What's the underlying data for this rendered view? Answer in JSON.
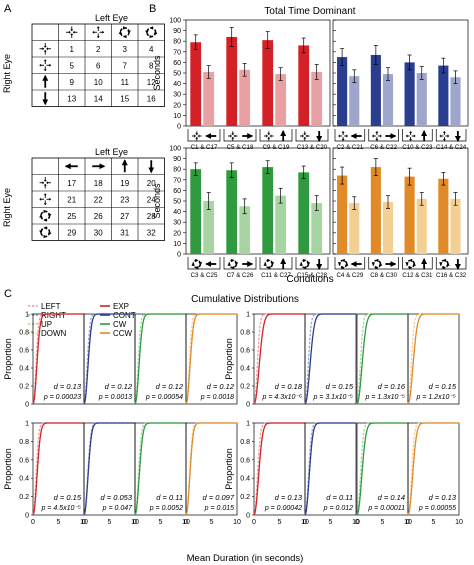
{
  "panel_labels": {
    "a": "A",
    "b": "B",
    "c": "C"
  },
  "panel_a": {
    "table1": {
      "title": "Left Eye",
      "side_label": "Right Eye",
      "col_icons": [
        "cross-in-arrows-icon",
        "cross-out-arrows-icon",
        "circle-arrows-cw-icon",
        "circle-arrows-ccw-icon"
      ],
      "row_icons": [
        "cross-in-arrows-icon",
        "cross-out-arrows-icon",
        "arrow-up-icon",
        "arrow-down-icon"
      ],
      "cells": [
        [
          "1",
          "2",
          "3",
          "4"
        ],
        [
          "5",
          "6",
          "7",
          "8"
        ],
        [
          "9",
          "10",
          "11",
          "12"
        ],
        [
          "13",
          "14",
          "15",
          "16"
        ]
      ]
    },
    "table2": {
      "title": "Left Eye",
      "side_label": "Right Eye",
      "col_icons": [
        "arrow-left-icon",
        "arrow-right-icon",
        "arrow-up-icon",
        "arrow-down-icon"
      ],
      "row_icons": [
        "cross-in-arrows-icon",
        "cross-out-arrows-icon",
        "circle-arrows-cw-icon",
        "circle-arrows-ccw-icon"
      ],
      "cells": [
        [
          "17",
          "18",
          "19",
          "20"
        ],
        [
          "21",
          "22",
          "23",
          "24"
        ],
        [
          "25",
          "26",
          "27",
          "28"
        ],
        [
          "29",
          "30",
          "31",
          "32"
        ]
      ]
    }
  },
  "chart_data": [
    {
      "type": "bar",
      "panel": "B",
      "title": "Total Time Dominant",
      "ylabel": "Seconds",
      "xlabel": "Conditions",
      "ylim": [
        0,
        100
      ],
      "yticks": [
        "0",
        "10",
        "20",
        "30",
        "40",
        "50",
        "60",
        "70",
        "80",
        "90",
        "100"
      ],
      "rows": [
        {
          "groups": [
            {
              "series_colors": [
                "#d42128",
                "#e8a0a2"
              ],
              "categories": [
                "C1 & C17",
                "C5 & C18",
                "C9 & C19",
                "C13 & C20"
              ],
              "values": [
                [
                  79,
                  51
                ],
                [
                  84,
                  53
                ],
                [
                  81,
                  49
                ],
                [
                  76,
                  51
                ]
              ],
              "errors": [
                [
                  7,
                  6
                ],
                [
                  9,
                  6
                ],
                [
                  8,
                  6
                ],
                [
                  7,
                  7
                ]
              ],
              "icons": [
                [
                  "cross-in-arrows-icon",
                  "arrow-left-icon"
                ],
                [
                  "cross-in-arrows-icon",
                  "arrow-right-icon"
                ],
                [
                  "cross-in-arrows-icon",
                  "arrow-up-icon"
                ],
                [
                  "cross-in-arrows-icon",
                  "arrow-down-icon"
                ]
              ]
            },
            {
              "series_colors": [
                "#2a3d8f",
                "#9ea6cc"
              ],
              "categories": [
                "C2 & C21",
                "C6 & C22",
                "C10 & C23",
                "C14 & C24"
              ],
              "values": [
                [
                  65,
                  47
                ],
                [
                  67,
                  49
                ],
                [
                  60,
                  50
                ],
                [
                  57,
                  46
                ]
              ],
              "errors": [
                [
                  8,
                  6
                ],
                [
                  9,
                  6
                ],
                [
                  7,
                  6
                ],
                [
                  7,
                  6
                ]
              ],
              "icons": [
                [
                  "cross-out-arrows-icon",
                  "arrow-left-icon"
                ],
                [
                  "cross-out-arrows-icon",
                  "arrow-right-icon"
                ],
                [
                  "cross-out-arrows-icon",
                  "arrow-up-icon"
                ],
                [
                  "cross-out-arrows-icon",
                  "arrow-down-icon"
                ]
              ]
            }
          ]
        },
        {
          "groups": [
            {
              "series_colors": [
                "#2f9a3f",
                "#a7d4a0"
              ],
              "categories": [
                "C3 & C25",
                "C7 & C26",
                "C11 & C27",
                "C15 & C28"
              ],
              "values": [
                [
                  80,
                  50
                ],
                [
                  79,
                  45
                ],
                [
                  82,
                  55
                ],
                [
                  77,
                  48
                ]
              ],
              "errors": [
                [
                  6,
                  8
                ],
                [
                  7,
                  7
                ],
                [
                  6,
                  7
                ],
                [
                  6,
                  7
                ]
              ],
              "icons": [
                [
                  "circle-arrows-cw-icon",
                  "arrow-left-icon"
                ],
                [
                  "circle-arrows-cw-icon",
                  "arrow-right-icon"
                ],
                [
                  "circle-arrows-cw-icon",
                  "arrow-up-icon"
                ],
                [
                  "circle-arrows-cw-icon",
                  "arrow-down-icon"
                ]
              ]
            },
            {
              "series_colors": [
                "#e08a28",
                "#f4cf94"
              ],
              "categories": [
                "C4 & C29",
                "C8 & C30",
                "C12 & C31",
                "C16 & C32"
              ],
              "values": [
                [
                  74,
                  48
                ],
                [
                  82,
                  49
                ],
                [
                  73,
                  52
                ],
                [
                  71,
                  52
                ]
              ],
              "errors": [
                [
                  8,
                  6
                ],
                [
                  8,
                  6
                ],
                [
                  8,
                  6
                ],
                [
                  6,
                  6
                ]
              ],
              "icons": [
                [
                  "circle-arrows-ccw-icon",
                  "arrow-left-icon"
                ],
                [
                  "circle-arrows-ccw-icon",
                  "arrow-right-icon"
                ],
                [
                  "circle-arrows-ccw-icon",
                  "arrow-up-icon"
                ],
                [
                  "circle-arrows-ccw-icon",
                  "arrow-down-icon"
                ]
              ]
            }
          ]
        }
      ]
    },
    {
      "type": "line",
      "panel": "C",
      "title": "Cumulative Distributions",
      "ylabel": "Proportion",
      "xlabel": "Mean Duration (in seconds)",
      "xlim": [
        0,
        10
      ],
      "ylim": [
        0,
        1
      ],
      "yticks": [
        "0",
        "0.2",
        "0.4",
        "0.6",
        "0.8",
        "1"
      ],
      "xticks": [
        "0",
        "5",
        "10"
      ],
      "legend": [
        {
          "name": "LEFT",
          "color": "#e8a0a2",
          "dash": true
        },
        {
          "name": "RIGHT",
          "color": "#9ea6cc",
          "dash": true
        },
        {
          "name": "UP",
          "color": "#a7d4a0",
          "dash": true
        },
        {
          "name": "DOWN",
          "color": "#f4cf94",
          "dash": true
        },
        {
          "name": "EXP",
          "color": "#d42128",
          "dash": false
        },
        {
          "name": "CONT",
          "color": "#2a3d8f",
          "dash": false
        },
        {
          "name": "CW",
          "color": "#2f9a3f",
          "dash": false
        },
        {
          "name": "CCW",
          "color": "#e08a28",
          "dash": false
        }
      ],
      "panels": [
        {
          "color": "#d42128",
          "light": "#e8a0a2",
          "d": "d = 0.13",
          "p": "p = 0.00023",
          "scale_solid": 1.0,
          "scale_dash": 0.78
        },
        {
          "color": "#2a3d8f",
          "light": "#9ea6cc",
          "d": "d = 0.12",
          "p": "p = 0.0013",
          "scale_solid": 1.05,
          "scale_dash": 0.82
        },
        {
          "color": "#2f9a3f",
          "light": "#a7d4a0",
          "d": "d = 0.12",
          "p": "p = 0.00054",
          "scale_solid": 1.05,
          "scale_dash": 0.8
        },
        {
          "color": "#e08a28",
          "light": "#f4cf94",
          "d": "d = 0.12",
          "p": "p = 0.0018",
          "scale_solid": 1.05,
          "scale_dash": 0.82
        },
        {
          "color": "#d42128",
          "light": "#e8a0a2",
          "d": "d = 0.18",
          "p": "p = 4.3x10⁻⁶",
          "scale_solid": 1.35,
          "scale_dash": 0.85
        },
        {
          "color": "#2a3d8f",
          "light": "#9ea6cc",
          "d": "d = 0.15",
          "p": "p = 3.1x10⁻⁵",
          "scale_solid": 1.3,
          "scale_dash": 0.85
        },
        {
          "color": "#2f9a3f",
          "light": "#a7d4a0",
          "d": "d = 0.16",
          "p": "p = 1.3x10⁻⁵",
          "scale_solid": 1.3,
          "scale_dash": 0.85
        },
        {
          "color": "#e08a28",
          "light": "#f4cf94",
          "d": "d = 0.15",
          "p": "p = 1.2x10⁻⁵",
          "scale_solid": 1.3,
          "scale_dash": 0.85
        },
        {
          "color": "#d42128",
          "light": "#e8a0a2",
          "d": "d = 0.15",
          "p": "p = 4.5x10⁻⁵",
          "scale_solid": 1.05,
          "scale_dash": 0.8
        },
        {
          "color": "#2a3d8f",
          "light": "#9ea6cc",
          "d": "d = 0.053",
          "p": "p = 0.047",
          "scale_solid": 1.05,
          "scale_dash": 0.95
        },
        {
          "color": "#2f9a3f",
          "light": "#a7d4a0",
          "d": "d = 0.11",
          "p": "p = 0.0052",
          "scale_solid": 1.1,
          "scale_dash": 0.88
        },
        {
          "color": "#e08a28",
          "light": "#f4cf94",
          "d": "d = 0.097",
          "p": "p = 0.015",
          "scale_solid": 1.0,
          "scale_dash": 0.88
        },
        {
          "color": "#d42128",
          "light": "#e8a0a2",
          "d": "d = 0.13",
          "p": "p = 0.00042",
          "scale_solid": 1.2,
          "scale_dash": 0.9
        },
        {
          "color": "#2a3d8f",
          "light": "#9ea6cc",
          "d": "d = 0.11",
          "p": "p = 0.012",
          "scale_solid": 1.1,
          "scale_dash": 0.9
        },
        {
          "color": "#2f9a3f",
          "light": "#a7d4a0",
          "d": "d = 0.14",
          "p": "p = 0.00011",
          "scale_solid": 1.25,
          "scale_dash": 0.9
        },
        {
          "color": "#e08a28",
          "light": "#f4cf94",
          "d": "d = 0.13",
          "p": "p = 0.00055",
          "scale_solid": 1.2,
          "scale_dash": 0.9
        }
      ]
    }
  ]
}
